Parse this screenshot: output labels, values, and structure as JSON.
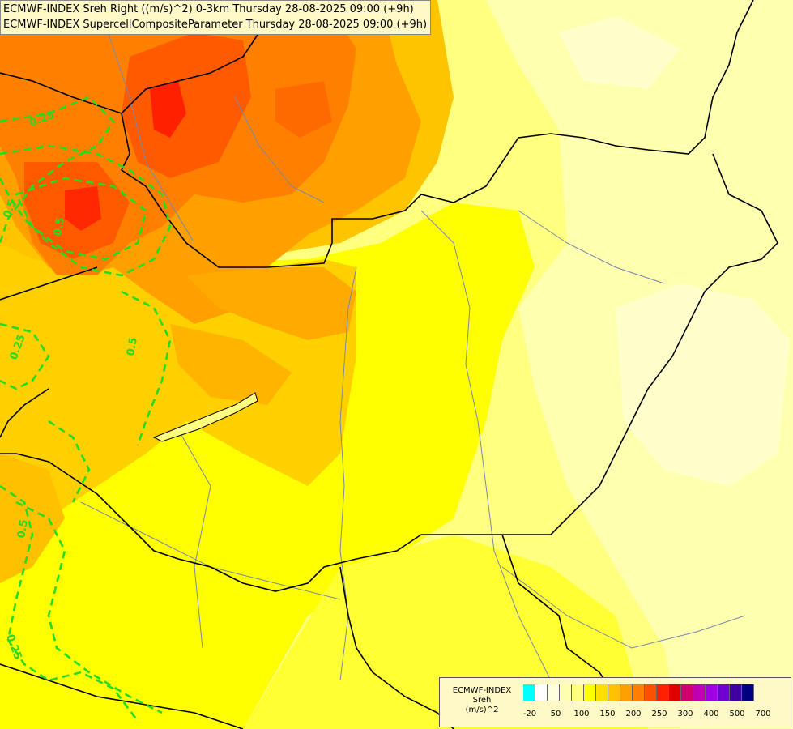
{
  "header": {
    "line1": "ECMWF-INDEX Sreh Right ((m/s)^2) 0-3km Thursday 28-08-2025 09:00 (+9h)",
    "line2": "ECMWF-INDEX SupercellCompositeParameter Thursday 28-08-2025 09:00 (+9h)"
  },
  "contour_labels": [
    "0.25",
    "0.5",
    "0.5",
    "0.25",
    "0.5",
    "0.5",
    "0.25"
  ],
  "legend": {
    "source": "ECMWF-INDEX",
    "variable": "Sreh",
    "unit": "(m/s)^2",
    "tick_labels": [
      "-20",
      "50",
      "100",
      "150",
      "200",
      "250",
      "300",
      "400",
      "500",
      "700"
    ],
    "colors": [
      "#00ffff",
      "#ffffff",
      "#ffffe0",
      "#ffffb0",
      "#ffff80",
      "#ffff00",
      "#ffe000",
      "#ffc000",
      "#ffa000",
      "#ff8000",
      "#ff5000",
      "#ff2000",
      "#e00000",
      "#d00070",
      "#c000b0",
      "#a000e0",
      "#7000d0",
      "#4000a0",
      "#000080"
    ]
  },
  "colors": {
    "background": "#ffff80",
    "border": "#000000",
    "river": "#7788aa",
    "scp_contour": "#22dd22"
  }
}
